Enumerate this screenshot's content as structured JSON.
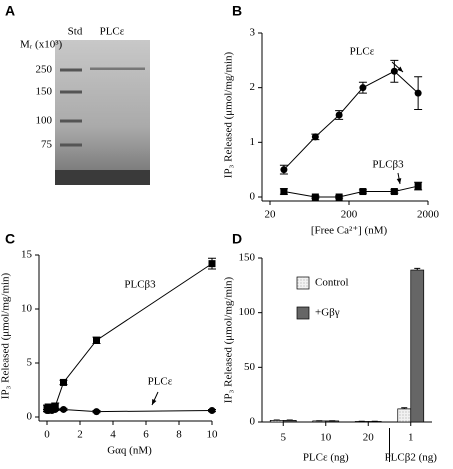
{
  "gel": {
    "panel": "A",
    "ylabel": "Mᵣ (x10³)",
    "lanes": [
      "Std",
      "PLCε"
    ],
    "markers": [
      250,
      150,
      100,
      75
    ]
  },
  "chart_data": [
    {
      "type": "line",
      "panel": "B",
      "xlabel": "[Free Ca²⁺] (nM)",
      "ylabel": "IP₃ Released (μmol/mg/min)",
      "xscale": "log",
      "xlim": [
        20,
        2000
      ],
      "xticks": [
        20,
        200,
        2000
      ],
      "ylim": [
        0,
        3
      ],
      "yticks": [
        0,
        1,
        2,
        3
      ],
      "x": [
        30,
        75,
        150,
        300,
        750,
        1500
      ],
      "series": [
        {
          "name": "PLCε",
          "marker": "circle",
          "color": "#000000",
          "values": [
            0.5,
            1.1,
            1.5,
            2.0,
            2.3,
            1.9
          ],
          "errors": [
            0.08,
            0.05,
            0.08,
            0.1,
            0.2,
            0.3
          ]
        },
        {
          "name": "PLCβ3",
          "marker": "square",
          "color": "#000000",
          "values": [
            0.1,
            0,
            0,
            0.1,
            0.1,
            0.2
          ],
          "errors": [
            0.05,
            0.02,
            0.02,
            0.03,
            0.03,
            0.07
          ]
        }
      ],
      "annotations": [
        "PLCε",
        "PLCβ3"
      ]
    },
    {
      "type": "line",
      "panel": "C",
      "xlabel": "Gαq (nM)",
      "ylabel": "IP₃ Released (μmol/mg/min)",
      "xscale": "linear",
      "xlim": [
        0,
        10
      ],
      "xticks": [
        0,
        2,
        4,
        6,
        8,
        10
      ],
      "ylim": [
        0,
        15
      ],
      "yticks": [
        0,
        5,
        10,
        15
      ],
      "x": [
        0,
        0.1,
        0.3,
        0.5,
        1,
        3,
        10
      ],
      "series": [
        {
          "name": "PLCβ3",
          "marker": "square",
          "color": "#000000",
          "values": [
            0.8,
            0.9,
            0.9,
            1.0,
            3.2,
            7.1,
            14.2
          ],
          "errors": [
            0.3,
            0.3,
            0.3,
            0.3,
            0.2,
            0.3,
            0.5
          ]
        },
        {
          "name": "PLCε",
          "marker": "circle",
          "color": "#000000",
          "values": [
            0.6,
            0.6,
            0.6,
            0.7,
            0.7,
            0.5,
            0.6
          ],
          "errors": [
            0.1,
            0.1,
            0.1,
            0.1,
            0.1,
            0.1,
            0.1
          ]
        }
      ],
      "annotations": [
        "PLCβ3",
        "PLCε"
      ]
    },
    {
      "type": "bar",
      "panel": "D",
      "ylabel": "IP₃ Released (μmol/mg/min)",
      "ylim": [
        0,
        150
      ],
      "yticks": [
        0,
        50,
        100,
        150
      ],
      "categories": [
        "5",
        "10",
        "20",
        "1"
      ],
      "group_labels": [
        "PLCε (ng)",
        "PLCβ2 (ng)"
      ],
      "series": [
        {
          "name": "Control",
          "color": "#f2f2f2",
          "values": [
            1.5,
            1,
            0.5,
            12
          ],
          "errors": [
            0.3,
            0.2,
            0.2,
            1
          ]
        },
        {
          "name": "+Gβγ",
          "color": "#666666",
          "values": [
            1.5,
            1,
            0.5,
            139
          ],
          "errors": [
            0.3,
            0.2,
            0.2,
            1.5
          ]
        }
      ]
    }
  ]
}
